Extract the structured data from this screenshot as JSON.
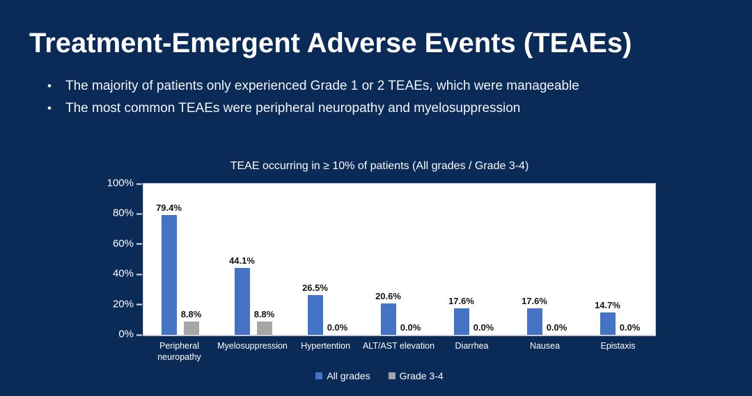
{
  "slide": {
    "title": "Treatment-Emergent Adverse Events (TEAEs)",
    "bullets": [
      "The majority of patients only experienced Grade 1 or 2 TEAEs, which were manageable",
      "The most common TEAEs were peripheral neuropathy and myelosuppression"
    ]
  },
  "colors": {
    "background": "#0A2A58",
    "title_text": "#FFFFFF",
    "body_text": "#F2F5FA",
    "plot_background": "#FFFFFF",
    "data_label_text": "#141414",
    "all_grades_blue": "#4472C4",
    "grade_3_4_gray": "#A6A6A6"
  },
  "chart_data": {
    "type": "bar",
    "title": "TEAE occurring in ≥ 10% of patients (All grades / Grade 3-4)",
    "categories": [
      "Peripheral neuropathy",
      "Myelosuppression",
      "Hypertention",
      "ALT/AST elevation",
      "Diarrhea",
      "Nausea",
      "Epistaxis"
    ],
    "x_tick_labels": [
      "Peripheral\nneuropathy",
      "Myelosuppression",
      "Hypertention",
      "ALT/AST elevation",
      "Diarrhea",
      "Nausea",
      "Epistaxis"
    ],
    "series": [
      {
        "name": "All grades",
        "color": "#4472C4",
        "values": [
          79.4,
          44.1,
          26.5,
          20.6,
          17.6,
          17.6,
          14.7
        ]
      },
      {
        "name": "Grade 3-4",
        "color": "#A6A6A6",
        "values": [
          8.8,
          8.8,
          0.0,
          0.0,
          0.0,
          0.0,
          0.0
        ]
      }
    ],
    "value_label_format": "one-decimal-percent",
    "y_ticks": [
      "100%",
      "80%",
      "60%",
      "40%",
      "20%",
      "0%"
    ],
    "ylim": [
      0,
      100
    ],
    "grid": false,
    "legend_position": "bottom"
  }
}
